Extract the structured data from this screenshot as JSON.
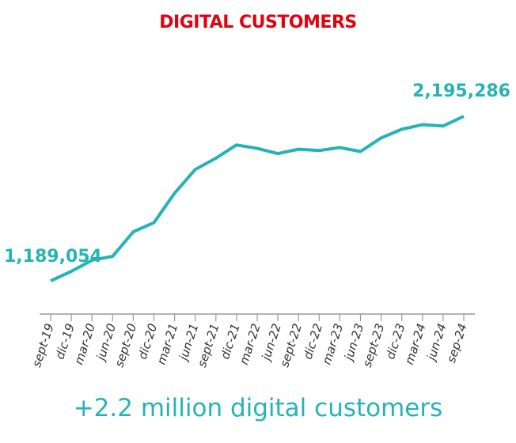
{
  "chart_data": {
    "type": "line",
    "title": "DIGITAL CUSTOMERS",
    "subtitle": "+2.2 million digital customers",
    "xlabel": "",
    "ylabel": "",
    "categories": [
      "sept-19",
      "dic-19",
      "mar-20",
      "jun-20",
      "sept-20",
      "dic-20",
      "mar-21",
      "jun-21",
      "sept-21",
      "dic-21",
      "mar-22",
      "jun-22",
      "sept-22",
      "dic-22",
      "mar-23",
      "jun-23",
      "sept-23",
      "dic-23",
      "mar-24",
      "jun-24",
      "sep-24"
    ],
    "series": [
      {
        "values": [
          1189054,
          1247000,
          1315000,
          1339000,
          1489000,
          1545000,
          1725000,
          1870000,
          1939000,
          2020000,
          1999000,
          1967000,
          1994000,
          1986000,
          2004000,
          1980000,
          2063000,
          2116000,
          2144000,
          2136000,
          2195286
        ]
      }
    ],
    "data_labels": [
      {
        "index": 0,
        "text": "1,189,054"
      },
      {
        "index": 20,
        "text": "2,195,286"
      }
    ],
    "grid": false,
    "legend": "none",
    "colors": {
      "line": "#26b3b5",
      "title": "#e3000f",
      "axis": "#999999"
    }
  }
}
